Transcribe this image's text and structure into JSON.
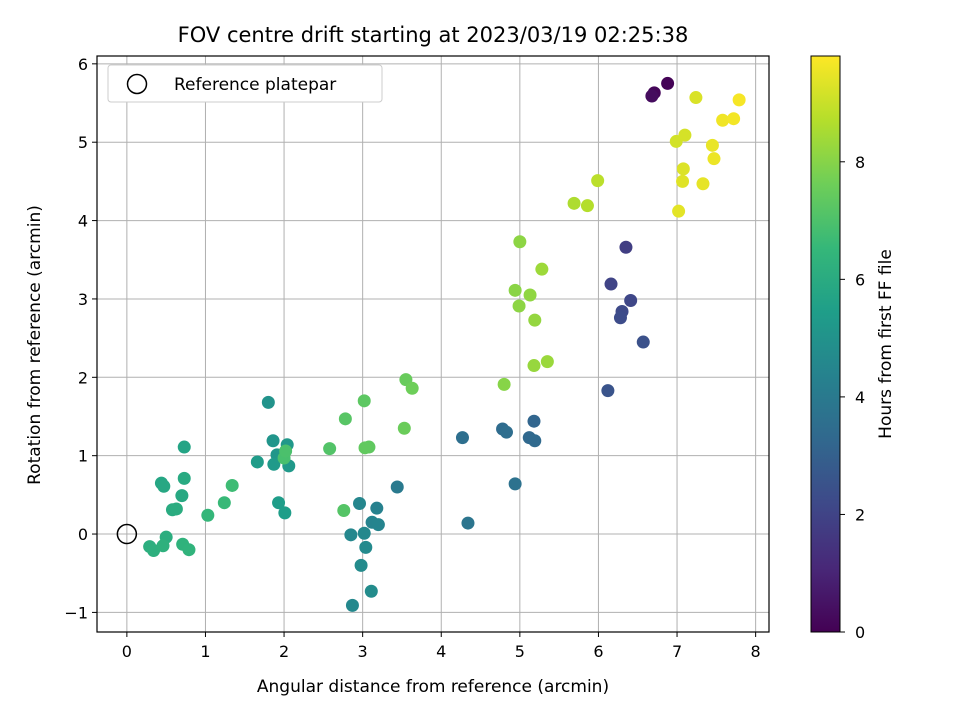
{
  "chart_data": {
    "type": "scatter",
    "title": "FOV centre drift starting at 2023/03/19 02:25:38",
    "xlabel": "Angular distance from reference (arcmin)",
    "ylabel": "Rotation from reference (arcmin)",
    "xlim": [
      -0.38,
      8.17
    ],
    "ylim": [
      -1.25,
      6.1
    ],
    "xticks": [
      0,
      1,
      2,
      3,
      4,
      5,
      6,
      7,
      8
    ],
    "yticks": [
      -1,
      0,
      1,
      2,
      3,
      4,
      5,
      6
    ],
    "ytick_labels": [
      "−1",
      "0",
      "1",
      "2",
      "3",
      "4",
      "5",
      "6"
    ],
    "grid": true,
    "legend": {
      "position": "top-left",
      "entries": [
        "Reference platepar"
      ]
    },
    "reference_point": {
      "label": "Reference platepar",
      "x": 0,
      "y": 0
    },
    "colorbar": {
      "label": "Hours from first FF file",
      "colormap": "viridis",
      "range": [
        0,
        9.8
      ],
      "ticks": [
        0,
        2,
        4,
        6,
        8
      ]
    },
    "colormap_stops": [
      "#440154",
      "#482878",
      "#3e4989",
      "#31688e",
      "#26828e",
      "#1f9e89",
      "#35b779",
      "#6ece58",
      "#b5de2b",
      "#fde725"
    ],
    "series": [
      {
        "x": [
          6.88,
          6.71,
          6.68,
          6.35,
          6.16,
          6.41,
          6.3,
          6.28,
          6.57,
          6.12,
          5.18,
          5.12,
          5.19,
          4.78,
          4.83,
          4.27,
          4.94,
          4.34,
          3.44,
          3.18,
          3.12,
          3.2,
          2.96,
          2.85,
          3.02,
          3.04,
          2.98,
          2.87,
          3.11,
          1.8,
          1.86,
          1.91,
          2.04,
          2.06,
          1.87,
          1.66,
          1.93,
          2.01,
          0.73,
          0.44,
          0.47,
          0.7,
          0.73,
          0.58,
          0.63,
          0.5,
          0.29,
          0.34,
          0.46,
          0.71,
          0.79,
          1.03,
          1.24,
          1.34,
          2.0,
          2.02,
          2.58,
          2.78,
          2.76,
          3.02,
          3.08,
          3.03,
          3.55,
          3.53,
          3.63,
          4.8,
          4.94,
          4.99,
          5.13,
          5.19,
          5.0,
          5.18,
          5.35,
          5.28,
          5.69,
          5.86,
          5.99,
          6.99,
          7.1,
          7.24,
          7.08,
          7.07,
          7.02,
          7.33,
          7.45,
          7.47,
          7.58,
          7.72,
          7.79
        ],
        "y": [
          5.75,
          5.63,
          5.59,
          3.66,
          3.19,
          2.98,
          2.84,
          2.76,
          2.45,
          1.83,
          1.44,
          1.23,
          1.19,
          1.34,
          1.3,
          1.23,
          0.64,
          0.14,
          0.6,
          0.33,
          0.15,
          0.12,
          0.39,
          -0.01,
          0.01,
          -0.17,
          -0.4,
          -0.91,
          -0.73,
          1.68,
          1.19,
          1.01,
          1.14,
          0.87,
          0.89,
          0.92,
          0.4,
          0.27,
          1.11,
          0.65,
          0.61,
          0.49,
          0.71,
          0.31,
          0.32,
          -0.04,
          -0.16,
          -0.21,
          -0.15,
          -0.13,
          -0.2,
          0.24,
          0.4,
          0.62,
          0.97,
          1.06,
          1.09,
          1.47,
          0.3,
          1.7,
          1.11,
          1.1,
          1.97,
          1.35,
          1.86,
          1.91,
          3.11,
          2.91,
          3.05,
          2.73,
          3.73,
          2.15,
          2.2,
          3.38,
          4.22,
          4.19,
          4.51,
          5.01,
          5.09,
          5.57,
          4.66,
          4.5,
          4.12,
          4.47,
          4.96,
          4.79,
          5.28,
          5.3,
          5.54
        ],
        "hours": [
          0.05,
          0.15,
          0.3,
          1.8,
          2.0,
          2.1,
          2.2,
          2.3,
          2.45,
          2.55,
          3.2,
          3.3,
          3.35,
          3.45,
          3.5,
          3.55,
          3.7,
          3.8,
          4.0,
          4.3,
          4.4,
          4.45,
          4.5,
          4.55,
          4.6,
          4.65,
          4.7,
          4.6,
          4.75,
          5.0,
          5.1,
          5.15,
          5.2,
          5.25,
          5.3,
          5.35,
          5.4,
          5.45,
          5.7,
          5.8,
          5.85,
          5.9,
          5.95,
          6.0,
          6.05,
          6.1,
          6.15,
          6.2,
          6.25,
          6.3,
          6.35,
          6.5,
          6.6,
          6.7,
          6.9,
          6.95,
          7.1,
          7.2,
          7.15,
          7.3,
          7.35,
          7.4,
          7.5,
          7.55,
          7.6,
          8.0,
          8.05,
          8.1,
          8.15,
          8.2,
          8.1,
          8.25,
          8.3,
          8.35,
          8.6,
          8.7,
          8.8,
          9.15,
          9.2,
          9.25,
          9.3,
          9.35,
          9.4,
          9.45,
          9.5,
          9.55,
          9.6,
          9.65,
          9.7
        ]
      }
    ]
  }
}
